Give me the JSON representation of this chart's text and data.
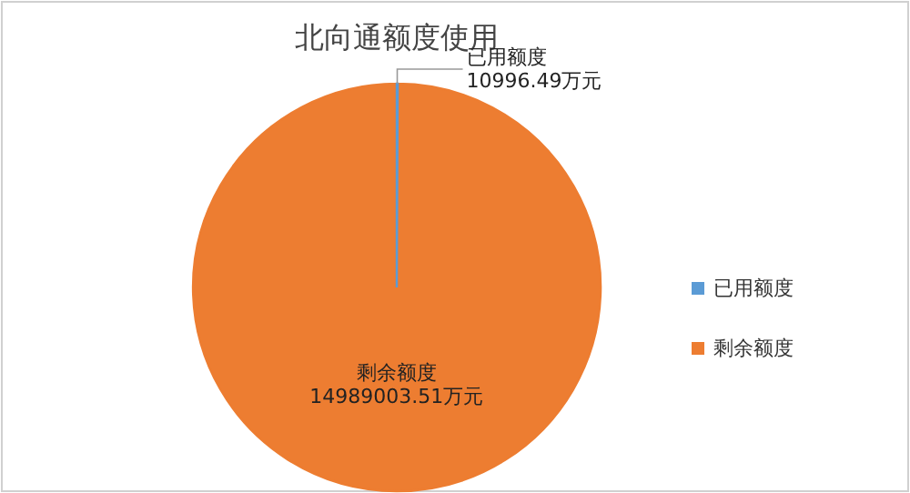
{
  "chart_data": {
    "type": "pie",
    "title": "北向通额度使用",
    "categories": [
      "已用额度",
      "剩余额度"
    ],
    "values": [
      10996.49,
      14989003.51
    ],
    "colors": [
      "#5b9bd5",
      "#ed7d31"
    ],
    "value_labels": [
      "10996.49万元",
      "14989003.51万元"
    ],
    "legend": "right"
  }
}
